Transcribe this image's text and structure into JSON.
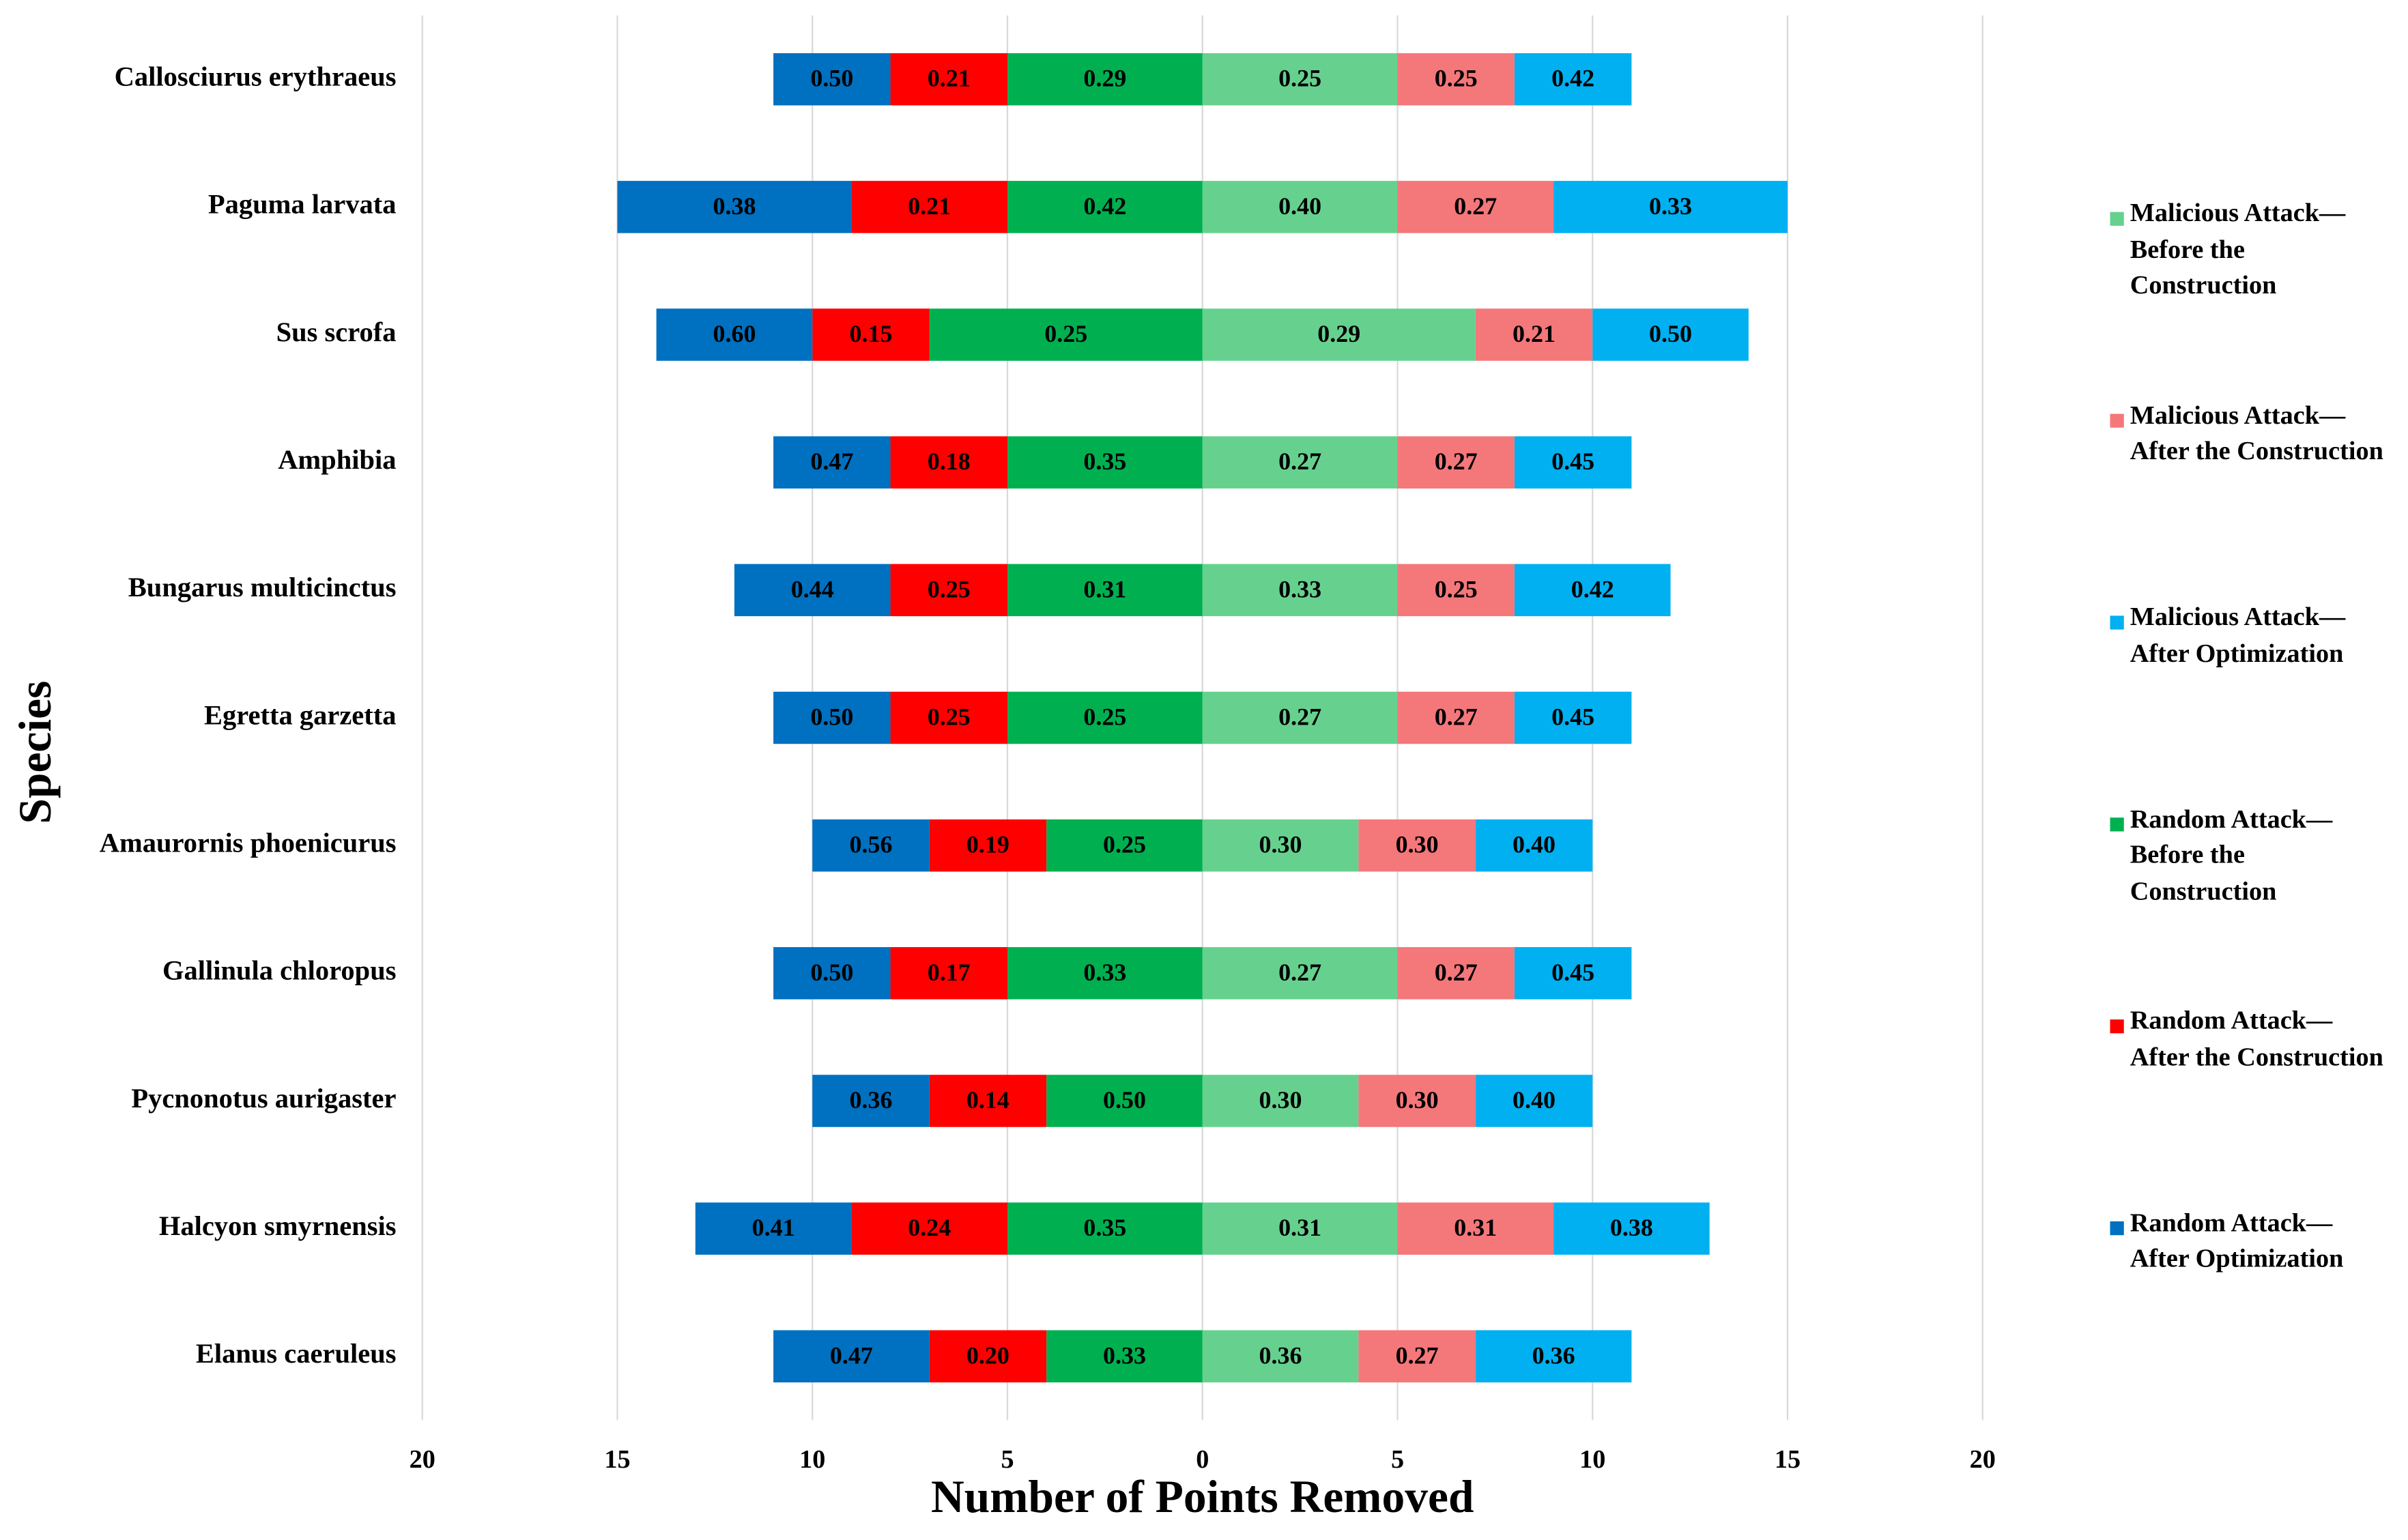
{
  "chart_data": {
    "type": "diverging-bar",
    "x_label": "Number of Points Removed",
    "y_label": "Species",
    "categories": [
      "Callosciurus erythraeus",
      "Paguma larvata",
      "Sus scrofa",
      "Amphibia",
      "Bungarus multicinctus",
      "Egretta garzetta",
      "Amaurornis phoenicurus",
      "Gallinula chloropus",
      "Pycnonotus aurigaster",
      "Halcyon smyrnensis",
      "Elanus caeruleus"
    ],
    "xlim": [
      -20,
      20
    ],
    "xticks": [
      {
        "value": -20,
        "label": "20"
      },
      {
        "value": -15,
        "label": "15"
      },
      {
        "value": -10,
        "label": "10"
      },
      {
        "value": -5,
        "label": "5"
      },
      0,
      5,
      10,
      15,
      20
    ],
    "grid": true,
    "legend": "right",
    "series": [
      {
        "name": "Malicious Attack—Before the Construction",
        "color": "#66d18f",
        "side": "right",
        "values": [
          5,
          5,
          7,
          5,
          5,
          5,
          4,
          5,
          4,
          5,
          4
        ],
        "ratio_labels": [
          "0.25",
          "0.40",
          "0.29",
          "0.27",
          "0.33",
          "0.27",
          "0.30",
          "0.27",
          "0.30",
          "0.31",
          "0.36"
        ]
      },
      {
        "name": "Malicious Attack—After the Construction",
        "color": "#f4777a",
        "side": "right",
        "values": [
          3,
          4,
          3,
          3,
          3,
          3,
          3,
          3,
          3,
          4,
          3
        ],
        "ratio_labels": [
          "0.25",
          "0.27",
          "0.21",
          "0.27",
          "0.25",
          "0.27",
          "0.30",
          "0.27",
          "0.30",
          "0.31",
          "0.27"
        ]
      },
      {
        "name": "Malicious Attack—After Optimization",
        "color": "#00b0f0",
        "side": "right",
        "values": [
          3,
          6,
          4,
          3,
          4,
          3,
          3,
          3,
          3,
          4,
          4
        ],
        "ratio_labels": [
          "0.42",
          "0.33",
          "0.50",
          "0.45",
          "0.42",
          "0.45",
          "0.40",
          "0.45",
          "0.40",
          "0.38",
          "0.36"
        ]
      },
      {
        "name": "Random Attack—Before the Construction",
        "color": "#00b050",
        "side": "left",
        "values": [
          5,
          5,
          7,
          5,
          5,
          5,
          4,
          5,
          4,
          5,
          4
        ],
        "ratio_labels": [
          "0.29",
          "0.42",
          "0.25",
          "0.35",
          "0.31",
          "0.25",
          "0.25",
          "0.33",
          "0.50",
          "0.35",
          "0.33"
        ]
      },
      {
        "name": "Random Attack—After the Construction",
        "color": "#ff0000",
        "side": "left",
        "values": [
          3,
          4,
          3,
          3,
          3,
          3,
          3,
          3,
          3,
          4,
          3
        ],
        "ratio_labels": [
          "0.21",
          "0.21",
          "0.15",
          "0.18",
          "0.25",
          "0.25",
          "0.19",
          "0.17",
          "0.14",
          "0.24",
          "0.20"
        ]
      },
      {
        "name": "Random Attack—After Optimization",
        "color": "#0070c0",
        "side": "left",
        "values": [
          3,
          6,
          4,
          3,
          4,
          3,
          3,
          3,
          3,
          4,
          4
        ],
        "ratio_labels": [
          "0.50",
          "0.38",
          "0.60",
          "0.47",
          "0.44",
          "0.50",
          "0.56",
          "0.50",
          "0.36",
          "0.41",
          "0.47"
        ]
      }
    ]
  }
}
